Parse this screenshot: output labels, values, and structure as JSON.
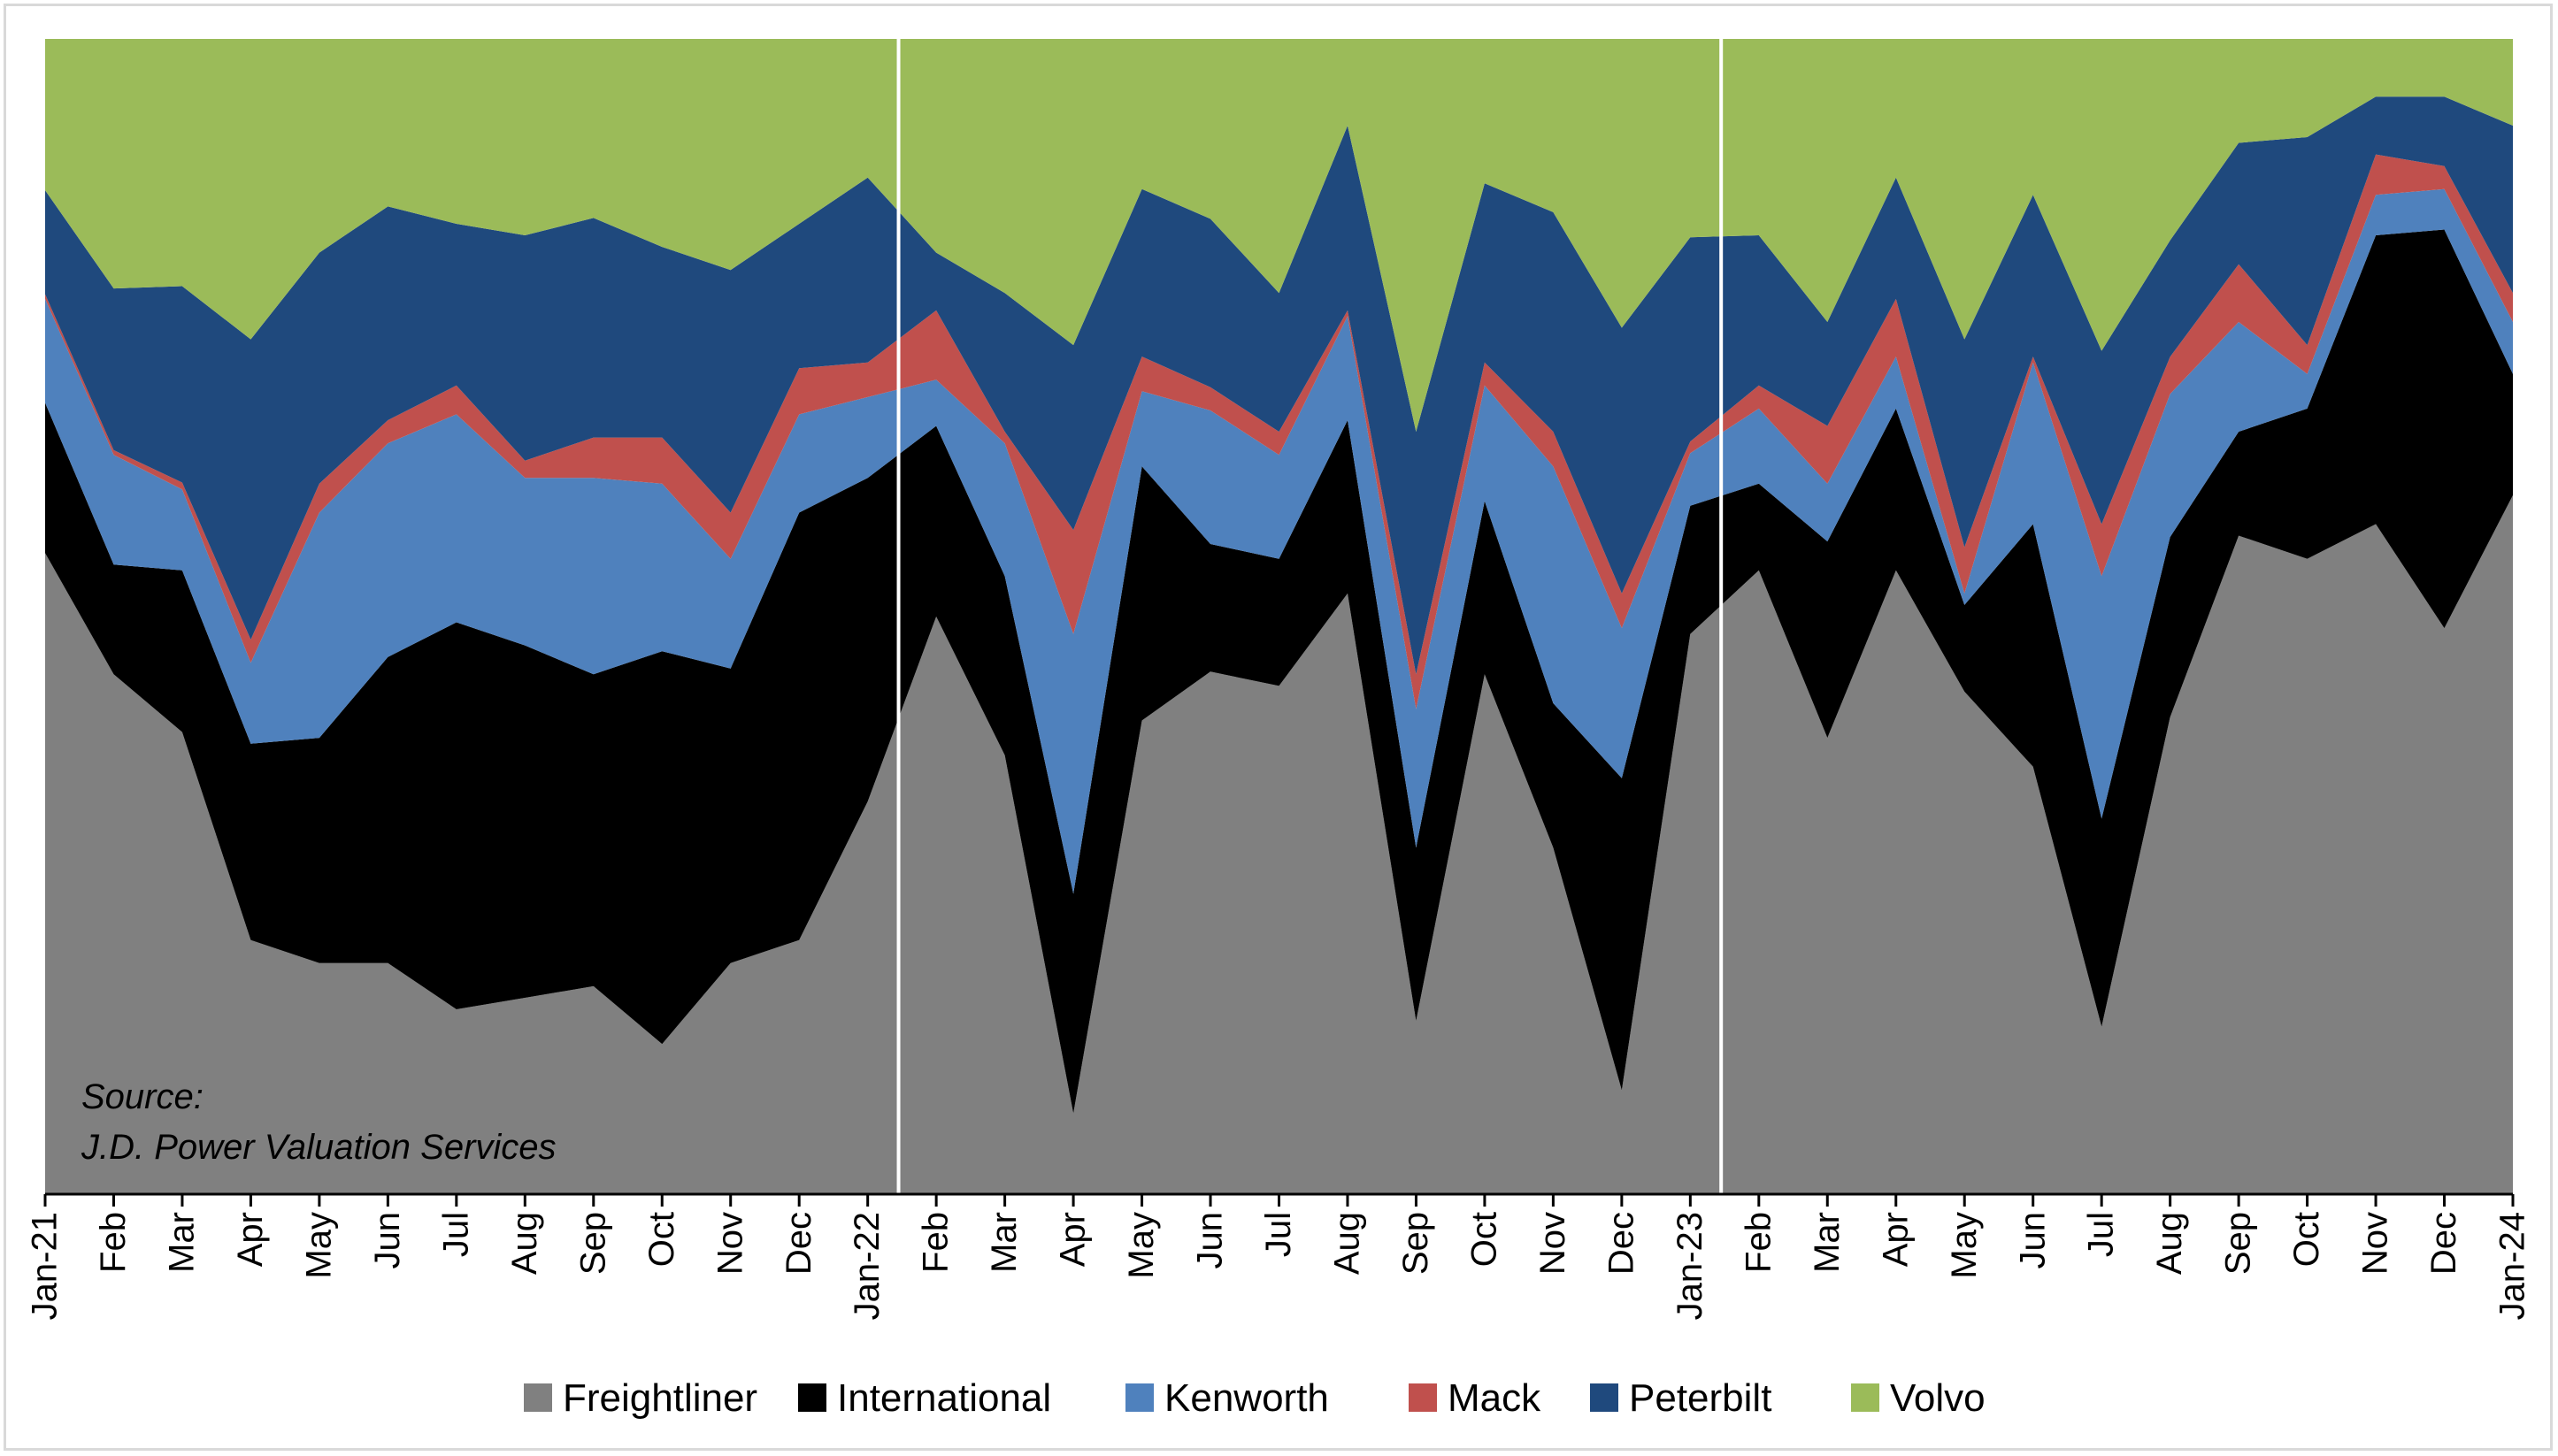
{
  "chart_data": {
    "type": "area",
    "stacked": "percent",
    "categories": [
      "Jan-21",
      "Feb",
      "Mar",
      "Apr",
      "May",
      "Jun",
      "Jul",
      "Aug",
      "Sep",
      "Oct",
      "Nov",
      "Dec",
      "Jan-22",
      "Feb",
      "Mar",
      "Apr",
      "May",
      "Jun",
      "Jul",
      "Aug",
      "Sep",
      "Oct",
      "Nov",
      "Dec",
      "Jan-23",
      "Feb",
      "Mar",
      "Apr",
      "May",
      "Jun",
      "Jul",
      "Aug",
      "Sep",
      "Oct",
      "Nov",
      "Dec",
      "Jan-24"
    ],
    "ylim": [
      0,
      100
    ],
    "grid": false,
    "legend_position": "bottom",
    "source_lines": [
      "Source:",
      "J.D. Power Valuation Services"
    ],
    "year_dividers": [
      "Jan-22",
      "Jan-23"
    ],
    "series": [
      {
        "name": "Freightliner",
        "color": "#808080",
        "values": [
          55.5,
          45.0,
          40.0,
          22.0,
          20.0,
          20.0,
          16.0,
          17.0,
          18.0,
          13.0,
          20.0,
          22.0,
          34.0,
          50.0,
          38.0,
          7.0,
          41.0,
          45.0,
          44.0,
          52.0,
          15.0,
          45.0,
          30.0,
          9.0,
          48.0,
          54.0,
          39.5,
          54.0,
          43.5,
          37.0,
          14.5,
          45.0,
          57.0,
          55.0,
          58.0,
          49.0,
          60.5
        ]
      },
      {
        "name": "International",
        "color": "#000000",
        "values": [
          13.0,
          9.5,
          14.0,
          17.0,
          19.5,
          26.5,
          33.5,
          30.5,
          27.0,
          34.0,
          25.5,
          37.0,
          28.0,
          16.5,
          15.5,
          19.0,
          22.0,
          11.0,
          11.0,
          15.0,
          15.0,
          15.0,
          12.5,
          27.0,
          11.0,
          7.5,
          17.0,
          14.0,
          7.5,
          21.0,
          18.0,
          17.0,
          9.0,
          13.0,
          25.0,
          34.5,
          10.5
        ]
      },
      {
        "name": "Kenworth",
        "color": "#4f81bd",
        "values": [
          9.0,
          9.5,
          7.0,
          7.0,
          19.5,
          18.5,
          18.0,
          14.5,
          17.0,
          14.5,
          9.5,
          8.5,
          7.0,
          4.0,
          11.5,
          22.5,
          6.5,
          11.5,
          9.0,
          9.0,
          12.0,
          10.0,
          20.5,
          13.0,
          4.5,
          6.5,
          5.0,
          4.5,
          1.0,
          14.0,
          21.0,
          13.5,
          9.5,
          3.0,
          3.5,
          3.5,
          4.5
        ]
      },
      {
        "name": "Mack",
        "color": "#c0504d",
        "values": [
          0.4,
          0.4,
          0.6,
          2.0,
          2.5,
          2.0,
          2.5,
          1.5,
          3.5,
          4.0,
          4.0,
          4.0,
          3.0,
          6.0,
          1.0,
          9.0,
          3.0,
          2.0,
          2.0,
          0.5,
          3.0,
          2.0,
          3.0,
          3.0,
          1.0,
          2.0,
          5.0,
          5.0,
          4.0,
          0.5,
          4.5,
          3.5,
          5.0,
          2.5,
          3.5,
          2.0,
          2.5
        ]
      },
      {
        "name": "Peterbilt",
        "color": "#1f497d",
        "values": [
          9.0,
          14.0,
          17.0,
          26.0,
          20.0,
          18.5,
          14.0,
          19.5,
          19.0,
          16.5,
          21.0,
          12.5,
          16.0,
          5.0,
          12.0,
          16.0,
          14.5,
          14.5,
          12.0,
          16.0,
          21.0,
          15.5,
          19.0,
          23.0,
          17.5,
          13.0,
          9.0,
          10.5,
          18.0,
          14.0,
          15.0,
          11.0,
          10.5,
          18.0,
          5.0,
          6.0,
          14.5
        ]
      },
      {
        "name": "Volvo",
        "color": "#9bbb59",
        "values": [
          13.1,
          21.6,
          21.4,
          26.0,
          18.5,
          14.5,
          16.0,
          17.0,
          15.5,
          18.0,
          20.0,
          16.0,
          12.0,
          18.5,
          22.0,
          26.5,
          13.0,
          15.5,
          22.0,
          7.5,
          34.0,
          12.5,
          15.0,
          25.0,
          17.0,
          17.0,
          24.5,
          12.0,
          26.0,
          13.5,
          27.0,
          19.0,
          9.0,
          8.5,
          5.0,
          5.0,
          7.5
        ]
      }
    ]
  }
}
